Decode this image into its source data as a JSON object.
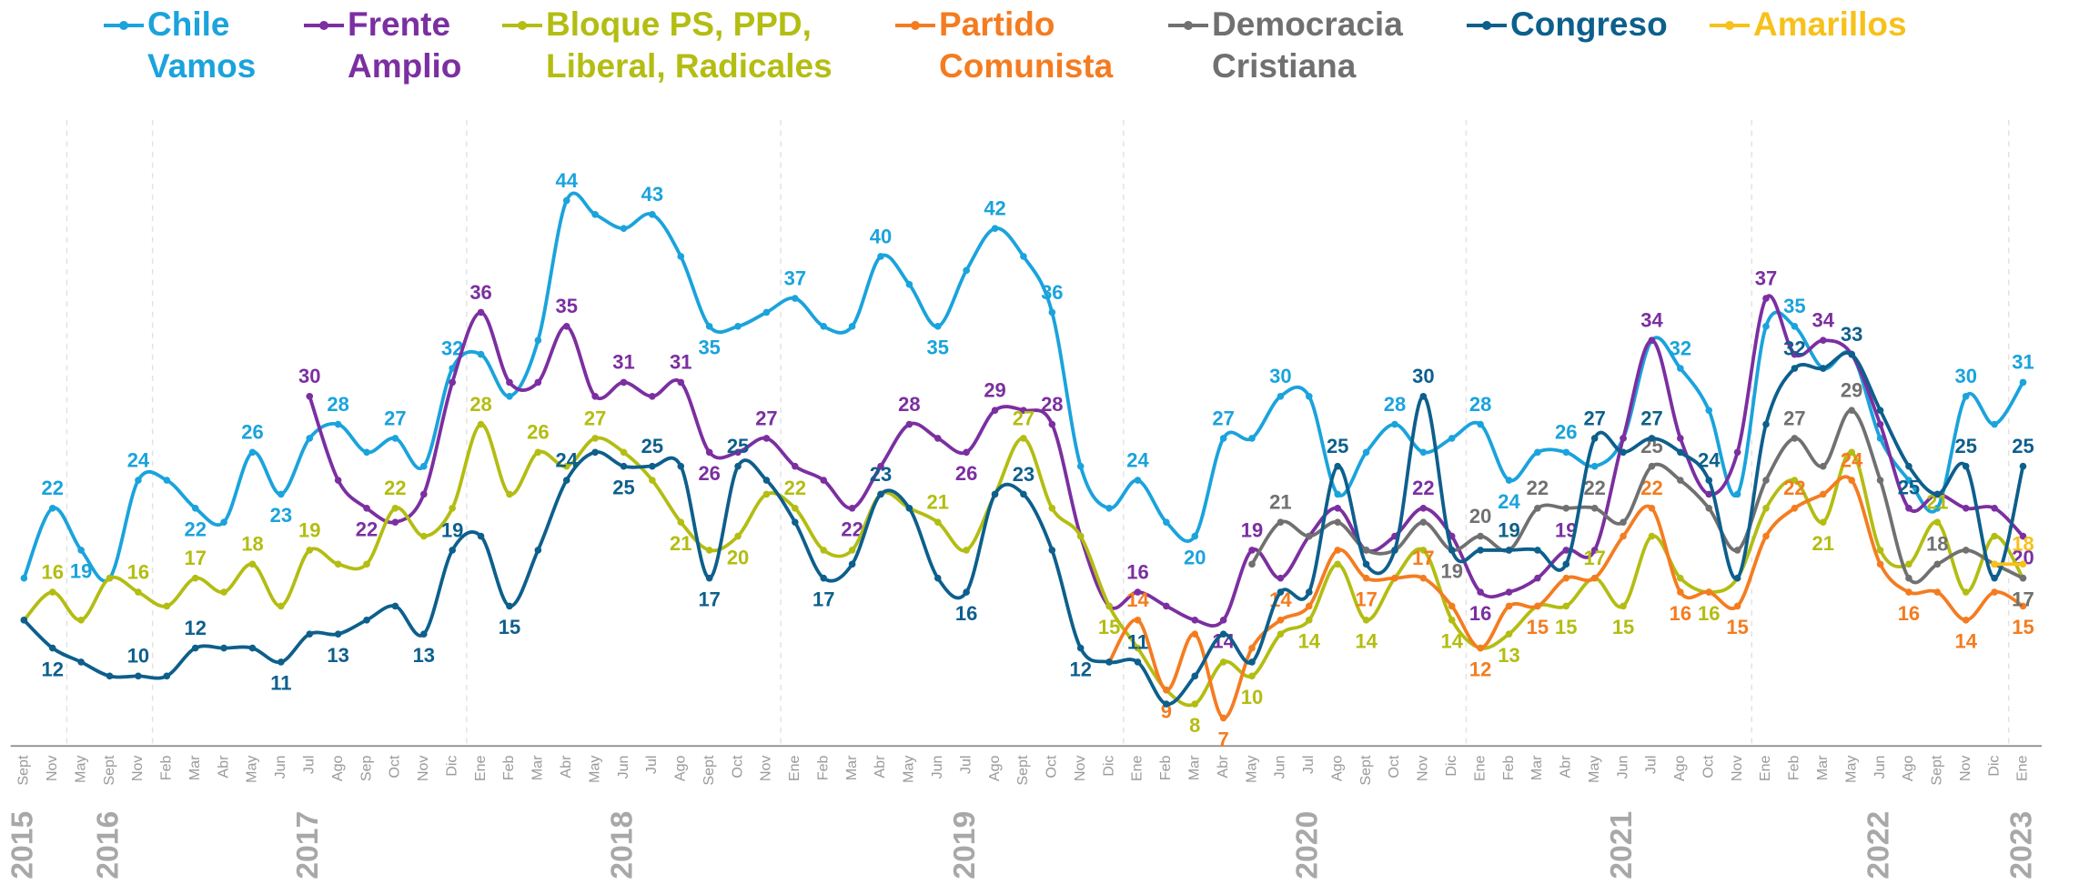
{
  "chart_data": {
    "type": "line",
    "smooth": true,
    "ylim": [
      5,
      46
    ],
    "categories": [
      "Sept",
      "Nov",
      "May",
      "Sept",
      "Nov",
      "Feb",
      "Mar",
      "Abr",
      "May",
      "Jun",
      "Jul",
      "Ago",
      "Sep",
      "Oct",
      "Nov",
      "Dic",
      "Ene",
      "Feb",
      "Mar",
      "Abr",
      "May",
      "Jun",
      "Jul",
      "Ago",
      "Sept",
      "Oct",
      "Nov",
      "Ene",
      "Feb",
      "Mar",
      "Abr",
      "May",
      "Jun",
      "Jul",
      "Ago",
      "Sept",
      "Oct",
      "Nov",
      "Dic",
      "Ene",
      "Feb",
      "Mar",
      "Abr",
      "May",
      "Jun",
      "Jul",
      "Ago",
      "Sept",
      "Oct",
      "Nov",
      "Dic",
      "Ene",
      "Feb",
      "Mar",
      "Abr",
      "May",
      "Jun",
      "Jul",
      "Ago",
      "Oct",
      "Nov",
      "Ene",
      "Feb",
      "Mar",
      "May",
      "Jun",
      "Ago",
      "Sept",
      "Nov",
      "Dic",
      "Ene"
    ],
    "years": [
      "2015",
      null,
      null,
      "2016",
      null,
      null,
      null,
      null,
      null,
      null,
      "2017",
      null,
      null,
      null,
      null,
      null,
      null,
      null,
      null,
      null,
      null,
      "2018",
      null,
      null,
      null,
      null,
      null,
      null,
      null,
      null,
      null,
      null,
      null,
      "2019",
      null,
      null,
      null,
      null,
      null,
      null,
      null,
      null,
      null,
      null,
      null,
      "2020",
      null,
      null,
      null,
      null,
      null,
      null,
      null,
      null,
      null,
      null,
      "2021",
      null,
      null,
      null,
      null,
      null,
      null,
      null,
      null,
      "2022",
      null,
      null,
      null,
      null,
      "2023"
    ],
    "series": [
      {
        "name": "Chile Vamos",
        "color": "#1aa3dc",
        "values": [
          17,
          22,
          19,
          17,
          24,
          24,
          22,
          21,
          26,
          23,
          27,
          28,
          26,
          27,
          25,
          32,
          33,
          30,
          34,
          44,
          43,
          42,
          43,
          40,
          35,
          35,
          36,
          37,
          35,
          35,
          40,
          38,
          35,
          39,
          42,
          40,
          36,
          25,
          22,
          24,
          21,
          20,
          27,
          27,
          30,
          30,
          23,
          26,
          28,
          26,
          27,
          28,
          24,
          26,
          26,
          25,
          27,
          34,
          32,
          29,
          23,
          35,
          35,
          32,
          33,
          27,
          24,
          22,
          30,
          28,
          31
        ],
        "value_labels": [
          null,
          "22",
          "19",
          null,
          "24",
          null,
          "22",
          null,
          "26",
          "23",
          null,
          "28",
          null,
          "27",
          null,
          "32",
          null,
          null,
          null,
          "44",
          null,
          null,
          "43",
          null,
          "35",
          null,
          null,
          "37",
          null,
          null,
          "40",
          null,
          "35",
          null,
          "42",
          null,
          "36",
          null,
          null,
          "24",
          null,
          "20",
          "27",
          null,
          "30",
          null,
          null,
          null,
          "28",
          null,
          null,
          "28",
          "24",
          null,
          "26",
          null,
          null,
          null,
          "32",
          null,
          null,
          null,
          "35",
          null,
          null,
          null,
          null,
          null,
          "30",
          null,
          "31"
        ]
      },
      {
        "name": "Frente Amplio",
        "color": "#7b2fa0",
        "values": [
          null,
          null,
          null,
          null,
          null,
          null,
          null,
          null,
          null,
          null,
          30,
          24,
          22,
          21,
          23,
          31,
          36,
          31,
          31,
          35,
          30,
          31,
          30,
          31,
          26,
          26,
          27,
          25,
          24,
          22,
          25,
          28,
          27,
          26,
          29,
          29,
          28,
          20,
          15,
          16,
          15,
          14,
          14,
          19,
          17,
          20,
          22,
          19,
          20,
          22,
          20,
          16,
          16,
          17,
          19,
          19,
          27,
          34,
          27,
          23,
          26,
          37,
          33,
          34,
          33,
          28,
          22,
          23,
          22,
          22,
          20
        ],
        "value_labels": [
          null,
          null,
          null,
          null,
          null,
          null,
          null,
          null,
          null,
          null,
          "30",
          null,
          "22",
          null,
          null,
          null,
          "36",
          null,
          null,
          "35",
          null,
          "31",
          null,
          "31",
          "26",
          null,
          "27",
          null,
          null,
          "22",
          null,
          "28",
          null,
          "26",
          "29",
          null,
          "28",
          null,
          null,
          "16",
          null,
          null,
          "14",
          "19",
          null,
          null,
          null,
          null,
          null,
          "22",
          null,
          "16",
          null,
          null,
          "19",
          null,
          null,
          "34",
          null,
          null,
          null,
          "37",
          null,
          "34",
          null,
          null,
          null,
          null,
          null,
          null,
          "20"
        ]
      },
      {
        "name": "Bloque PS, PPD, Liberal, Radicales",
        "color": "#b3bd12",
        "values": [
          14,
          16,
          14,
          17,
          16,
          15,
          17,
          16,
          18,
          15,
          19,
          18,
          18,
          22,
          20,
          22,
          28,
          23,
          26,
          25,
          27,
          26,
          24,
          21,
          19,
          20,
          23,
          22,
          19,
          19,
          23,
          22,
          21,
          19,
          23,
          27,
          22,
          20,
          15,
          12,
          9,
          8,
          11,
          10,
          13,
          14,
          18,
          14,
          17,
          19,
          14,
          12,
          13,
          15,
          15,
          17,
          15,
          20,
          17,
          16,
          17,
          22,
          24,
          21,
          26,
          19,
          18,
          21,
          16,
          20,
          17
        ],
        "value_labels": [
          null,
          "16",
          null,
          null,
          "16",
          null,
          "17",
          null,
          "18",
          null,
          "19",
          null,
          null,
          "22",
          null,
          null,
          "28",
          null,
          "26",
          null,
          "27",
          null,
          null,
          "21",
          null,
          "20",
          null,
          "22",
          null,
          null,
          null,
          null,
          "21",
          null,
          null,
          "27",
          null,
          null,
          "15",
          null,
          null,
          "8",
          null,
          "10",
          null,
          "14",
          null,
          "14",
          null,
          null,
          "14",
          null,
          "13",
          null,
          "15",
          "17",
          "15",
          null,
          null,
          "16",
          null,
          null,
          null,
          "21",
          null,
          null,
          null,
          "21",
          null,
          null,
          "17"
        ]
      },
      {
        "name": "Partido Comunista",
        "color": "#f47c20",
        "values": [
          null,
          null,
          null,
          null,
          null,
          null,
          null,
          null,
          null,
          null,
          null,
          null,
          null,
          null,
          null,
          null,
          null,
          null,
          null,
          null,
          null,
          null,
          null,
          null,
          null,
          null,
          null,
          null,
          null,
          null,
          null,
          null,
          null,
          null,
          null,
          null,
          null,
          null,
          11,
          14,
          9,
          13,
          7,
          12,
          14,
          15,
          19,
          17,
          17,
          17,
          15,
          12,
          15,
          15,
          17,
          17,
          20,
          22,
          16,
          16,
          15,
          20,
          22,
          23,
          24,
          18,
          16,
          16,
          14,
          16,
          15
        ],
        "value_labels": [
          null,
          null,
          null,
          null,
          null,
          null,
          null,
          null,
          null,
          null,
          null,
          null,
          null,
          null,
          null,
          null,
          null,
          null,
          null,
          null,
          null,
          null,
          null,
          null,
          null,
          null,
          null,
          null,
          null,
          null,
          null,
          null,
          null,
          null,
          null,
          null,
          null,
          null,
          null,
          "14",
          "9",
          null,
          "7",
          null,
          "14",
          null,
          null,
          "17",
          null,
          "17",
          null,
          "12",
          null,
          "15",
          null,
          null,
          null,
          "22",
          "16",
          null,
          "15",
          null,
          "22",
          null,
          "24",
          null,
          "16",
          null,
          "14",
          null,
          "15"
        ]
      },
      {
        "name": "Democracia Cristiana",
        "color": "#707070",
        "values": [
          null,
          null,
          null,
          null,
          null,
          null,
          null,
          null,
          null,
          null,
          null,
          null,
          null,
          null,
          null,
          null,
          null,
          null,
          null,
          null,
          null,
          null,
          null,
          null,
          null,
          null,
          null,
          null,
          null,
          null,
          null,
          null,
          null,
          null,
          null,
          null,
          null,
          null,
          null,
          null,
          null,
          null,
          null,
          18,
          21,
          20,
          21,
          19,
          19,
          21,
          19,
          20,
          19,
          22,
          22,
          22,
          21,
          25,
          24,
          22,
          19,
          24,
          27,
          25,
          29,
          24,
          17,
          18,
          19,
          18,
          17
        ],
        "value_labels": [
          null,
          null,
          null,
          null,
          null,
          null,
          null,
          null,
          null,
          null,
          null,
          null,
          null,
          null,
          null,
          null,
          null,
          null,
          null,
          null,
          null,
          null,
          null,
          null,
          null,
          null,
          null,
          null,
          null,
          null,
          null,
          null,
          null,
          null,
          null,
          null,
          null,
          null,
          null,
          null,
          null,
          null,
          null,
          null,
          "21",
          null,
          null,
          null,
          null,
          null,
          "19",
          "20",
          null,
          "22",
          null,
          "22",
          null,
          "25",
          null,
          null,
          null,
          null,
          "27",
          null,
          "29",
          null,
          null,
          "18",
          null,
          null,
          "17"
        ]
      },
      {
        "name": "Congreso",
        "color": "#0d5f8c",
        "values": [
          14,
          12,
          11,
          10,
          10,
          10,
          12,
          12,
          12,
          11,
          13,
          13,
          14,
          15,
          13,
          19,
          20,
          15,
          19,
          24,
          26,
          25,
          25,
          25,
          17,
          25,
          24,
          21,
          17,
          18,
          23,
          22,
          17,
          16,
          23,
          23,
          19,
          12,
          11,
          11,
          8,
          10,
          13,
          11,
          16,
          16,
          25,
          18,
          19,
          30,
          19,
          19,
          19,
          19,
          18,
          27,
          26,
          27,
          26,
          24,
          17,
          28,
          32,
          32,
          33,
          29,
          25,
          23,
          25,
          17,
          25
        ],
        "value_labels": [
          null,
          "12",
          null,
          null,
          "10",
          null,
          "12",
          null,
          null,
          "11",
          null,
          "13",
          null,
          null,
          "13",
          "19",
          null,
          "15",
          null,
          "24",
          null,
          "25",
          "25",
          null,
          "17",
          "25",
          null,
          null,
          "17",
          null,
          "23",
          null,
          null,
          "16",
          null,
          "23",
          null,
          "12",
          null,
          "11",
          null,
          null,
          null,
          null,
          null,
          null,
          "25",
          null,
          null,
          "30",
          null,
          null,
          "19",
          null,
          null,
          "27",
          null,
          "27",
          null,
          "24",
          null,
          null,
          "32",
          null,
          "33",
          null,
          "25",
          null,
          "25",
          null,
          "25"
        ]
      },
      {
        "name": "Amarillos",
        "color": "#f7c11a",
        "values": [
          null,
          null,
          null,
          null,
          null,
          null,
          null,
          null,
          null,
          null,
          null,
          null,
          null,
          null,
          null,
          null,
          null,
          null,
          null,
          null,
          null,
          null,
          null,
          null,
          null,
          null,
          null,
          null,
          null,
          null,
          null,
          null,
          null,
          null,
          null,
          null,
          null,
          null,
          null,
          null,
          null,
          null,
          null,
          null,
          null,
          null,
          null,
          null,
          null,
          null,
          null,
          null,
          null,
          null,
          null,
          null,
          null,
          null,
          null,
          null,
          null,
          null,
          null,
          null,
          null,
          null,
          null,
          null,
          null,
          18,
          18
        ],
        "value_labels": [
          null,
          null,
          null,
          null,
          null,
          null,
          null,
          null,
          null,
          null,
          null,
          null,
          null,
          null,
          null,
          null,
          null,
          null,
          null,
          null,
          null,
          null,
          null,
          null,
          null,
          null,
          null,
          null,
          null,
          null,
          null,
          null,
          null,
          null,
          null,
          null,
          null,
          null,
          null,
          null,
          null,
          null,
          null,
          null,
          null,
          null,
          null,
          null,
          null,
          null,
          null,
          null,
          null,
          null,
          null,
          null,
          null,
          null,
          null,
          null,
          null,
          null,
          null,
          null,
          null,
          null,
          null,
          null,
          null,
          null,
          "18"
        ]
      }
    ]
  }
}
